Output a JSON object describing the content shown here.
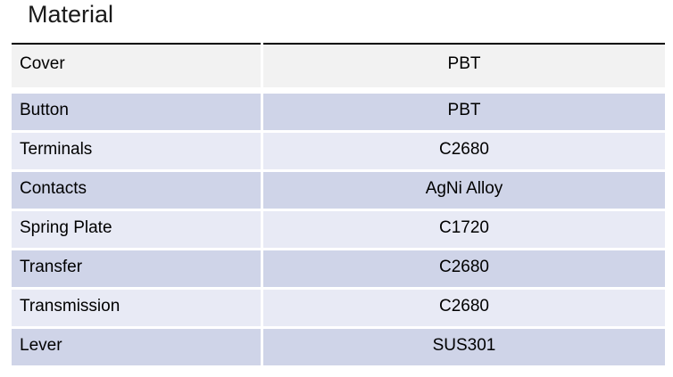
{
  "title": "Material",
  "table": {
    "rows": [
      {
        "part": "Cover",
        "material": "PBT"
      },
      {
        "part": "Button",
        "material": "PBT"
      },
      {
        "part": "Terminals",
        "material": "C2680"
      },
      {
        "part": "Contacts",
        "material": "AgNi Alloy"
      },
      {
        "part": "Spring Plate",
        "material": "C1720"
      },
      {
        "part": "Transfer",
        "material": "C2680"
      },
      {
        "part": "Transmission",
        "material": "C2680"
      },
      {
        "part": "Lever",
        "material": "SUS301"
      }
    ]
  },
  "colors": {
    "page_bg": "#ffffff",
    "top_border": "#000000",
    "first_row_bg": "#f2f2f2",
    "band_dark": "#cfd4e8",
    "band_light": "#e8eaf5",
    "text": "#000000"
  }
}
